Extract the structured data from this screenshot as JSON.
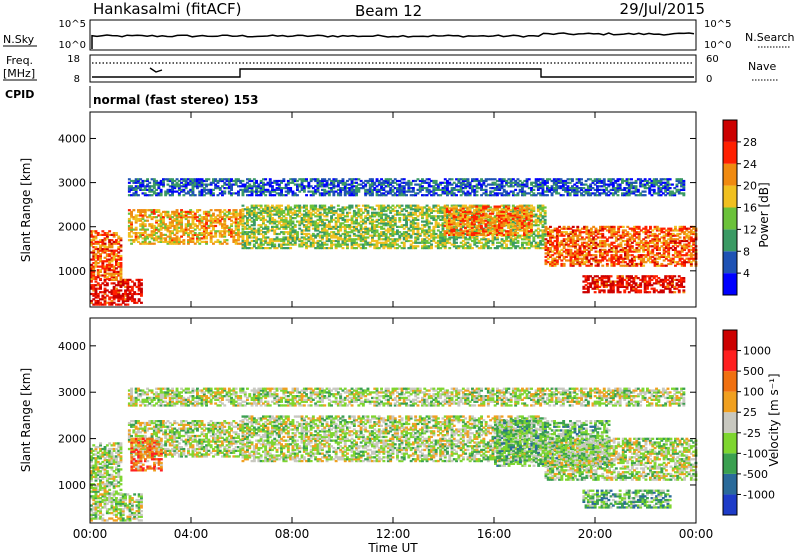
{
  "header": {
    "station": "Hankasalmi (fitACF)",
    "beam": "Beam 12",
    "date": "29/Jul/2015"
  },
  "nsky_panel": {
    "label": "N.Sky",
    "right_label": "N.Search",
    "left_ticks": [
      "10^5",
      "10^0"
    ],
    "right_ticks": [
      "10^5",
      "10^0"
    ]
  },
  "freq_panel": {
    "label_top": "Freq.",
    "label_bottom": "[MHz]",
    "right_label": "Nave",
    "left_ticks": [
      "18",
      "8"
    ],
    "right_ticks": [
      "60",
      "0"
    ]
  },
  "cpid": {
    "label": "CPID",
    "value": "normal (fast stereo) 153"
  },
  "x_axis": {
    "ticks": [
      "00:00",
      "04:00",
      "08:00",
      "12:00",
      "16:00",
      "20:00",
      "00:00"
    ],
    "label": "Time UT"
  },
  "chart_data": [
    {
      "type": "heatmap",
      "title": "",
      "ylabel": "Slant Range [km]",
      "xlabel": "Time UT",
      "xlim_hours": [
        0,
        24
      ],
      "ylim": [
        180,
        4600
      ],
      "yticks": [
        "4000",
        "3000",
        "2000",
        "1000"
      ],
      "colorbar": {
        "label": "Power [dB]",
        "ticks": [
          "28",
          "24",
          "20",
          "16",
          "12",
          "8",
          "4"
        ],
        "colors": [
          "#0000ff",
          "#1e52b4",
          "#3a9a64",
          "#6bc23a",
          "#f0c020",
          "#f08a10",
          "#ff2000",
          "#cc0000"
        ]
      },
      "bands": [
        {
          "t0": 0.0,
          "t1": 2.0,
          "r0": 220,
          "r1": 800,
          "level": 0.9
        },
        {
          "t0": 0.0,
          "t1": 1.2,
          "r0": 800,
          "r1": 1900,
          "level": 0.75
        },
        {
          "t0": 1.5,
          "t1": 6.0,
          "r0": 1600,
          "r1": 2400,
          "level": 0.6
        },
        {
          "t0": 6.0,
          "t1": 18.0,
          "r0": 1500,
          "r1": 2500,
          "level": 0.45
        },
        {
          "t0": 14.0,
          "t1": 17.5,
          "r0": 1800,
          "r1": 2450,
          "level": 0.7
        },
        {
          "t0": 18.0,
          "t1": 24.0,
          "r0": 1100,
          "r1": 2000,
          "level": 0.75
        },
        {
          "t0": 19.5,
          "t1": 23.5,
          "r0": 500,
          "r1": 900,
          "level": 0.9
        },
        {
          "t0": 1.5,
          "t1": 23.5,
          "r0": 2700,
          "r1": 3100,
          "level": 0.2
        }
      ]
    },
    {
      "type": "heatmap",
      "title": "",
      "ylabel": "Slant Range [km]",
      "xlabel": "Time UT",
      "xlim_hours": [
        0,
        24
      ],
      "ylim": [
        180,
        4600
      ],
      "yticks": [
        "4000",
        "3000",
        "2000",
        "1000"
      ],
      "colorbar": {
        "label": "Velocity [m s⁻¹]",
        "ticks": [
          "1000",
          "500",
          "100",
          "25",
          "-25",
          "-100",
          "-500",
          "-1000"
        ],
        "colors": [
          "#1e3cc8",
          "#2a6a9a",
          "#3aa050",
          "#7ed630",
          "#c8c8c0",
          "#f0a020",
          "#f07010",
          "#ff2020",
          "#cc0000"
        ]
      },
      "bands": [
        {
          "t0": 0.0,
          "t1": 2.0,
          "r0": 220,
          "r1": 800,
          "level": 0.45
        },
        {
          "t0": 0.0,
          "t1": 1.2,
          "r0": 800,
          "r1": 1900,
          "level": 0.45
        },
        {
          "t0": 1.5,
          "t1": 6.0,
          "r0": 1600,
          "r1": 2400,
          "level": 0.45
        },
        {
          "t0": 1.6,
          "t1": 2.8,
          "r0": 1300,
          "r1": 2000,
          "level": 0.7
        },
        {
          "t0": 6.0,
          "t1": 18.0,
          "r0": 1500,
          "r1": 2500,
          "level": 0.45
        },
        {
          "t0": 16.0,
          "t1": 20.5,
          "r0": 1400,
          "r1": 2400,
          "level": 0.35
        },
        {
          "t0": 18.0,
          "t1": 24.0,
          "r0": 1100,
          "r1": 2000,
          "level": 0.45
        },
        {
          "t0": 19.5,
          "t1": 23.0,
          "r0": 500,
          "r1": 900,
          "level": 0.33
        },
        {
          "t0": 1.5,
          "t1": 23.5,
          "r0": 2700,
          "r1": 3100,
          "level": 0.45
        }
      ]
    }
  ]
}
